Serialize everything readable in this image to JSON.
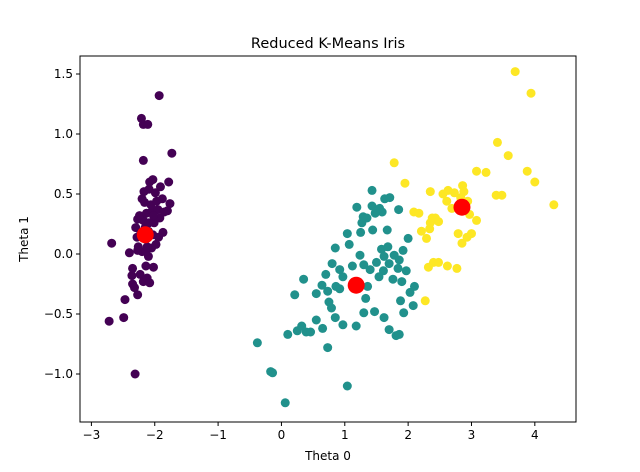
{
  "chart_data": {
    "type": "scatter",
    "title": "Reduced K-Means Iris",
    "xlabel": "Theta 0",
    "ylabel": "Theta 1",
    "xlim": [
      -3.18,
      4.65
    ],
    "ylim": [
      -1.4,
      1.65
    ],
    "xticks": [
      -3,
      -2,
      -1,
      0,
      1,
      2,
      3,
      4
    ],
    "yticks": [
      -1.0,
      -0.5,
      0.0,
      0.5,
      1.0,
      1.5
    ],
    "xtick_labels": [
      "−3",
      "−2",
      "−1",
      "0",
      "1",
      "2",
      "3",
      "4"
    ],
    "ytick_labels": [
      "−1.0",
      "−0.5",
      "0.0",
      "0.5",
      "1.0",
      "1.5"
    ],
    "grid": false,
    "colors": {
      "cluster0": "#440154",
      "cluster1": "#21918c",
      "cluster2": "#fde725",
      "centroid": "#ff0000"
    },
    "series": [
      {
        "cluster": 0,
        "points": [
          [
            -2.68,
            0.09
          ],
          [
            -2.72,
            -0.56
          ],
          [
            -2.49,
            -0.53
          ],
          [
            -2.31,
            -1.0
          ],
          [
            -2.47,
            -0.38
          ],
          [
            -2.35,
            -0.25
          ],
          [
            -2.36,
            -0.18
          ],
          [
            -2.32,
            -0.28
          ],
          [
            -2.27,
            -0.34
          ],
          [
            -2.23,
            -0.17
          ],
          [
            -2.18,
            -0.23
          ],
          [
            -2.14,
            -0.1
          ],
          [
            -2.12,
            -0.2
          ],
          [
            -2.08,
            -0.24
          ],
          [
            -2.02,
            -0.11
          ],
          [
            -2.1,
            -0.02
          ],
          [
            -2.35,
            -0.12
          ],
          [
            -2.4,
            0.01
          ],
          [
            -2.27,
            0.03
          ],
          [
            -2.2,
            0.02
          ],
          [
            -2.14,
            0.02
          ],
          [
            -2.05,
            0.05
          ],
          [
            -1.98,
            0.08
          ],
          [
            -2.28,
            0.14
          ],
          [
            -2.22,
            0.18
          ],
          [
            -2.15,
            0.22
          ],
          [
            -2.1,
            0.19
          ],
          [
            -2.03,
            0.16
          ],
          [
            -1.94,
            0.14
          ],
          [
            -1.87,
            0.18
          ],
          [
            -2.3,
            0.22
          ],
          [
            -2.27,
            0.29
          ],
          [
            -2.18,
            0.28
          ],
          [
            -2.09,
            0.26
          ],
          [
            -2.01,
            0.26
          ],
          [
            -1.92,
            0.3
          ],
          [
            -2.24,
            0.32
          ],
          [
            -2.13,
            0.34
          ],
          [
            -2.04,
            0.36
          ],
          [
            -1.95,
            0.37
          ],
          [
            -1.85,
            0.35
          ],
          [
            -2.16,
            0.43
          ],
          [
            -2.06,
            0.41
          ],
          [
            -1.97,
            0.44
          ],
          [
            -1.76,
            0.42
          ],
          [
            -2.17,
            0.52
          ],
          [
            -2.09,
            0.54
          ],
          [
            -1.99,
            0.51
          ],
          [
            -1.91,
            0.56
          ],
          [
            -2.08,
            0.6
          ],
          [
            -1.78,
            0.6
          ],
          [
            -2.03,
            0.62
          ],
          [
            -1.73,
            0.84
          ],
          [
            -2.18,
            0.78
          ],
          [
            -2.18,
            1.08
          ],
          [
            -2.11,
            1.08
          ],
          [
            -2.21,
            1.13
          ],
          [
            -1.93,
            1.32
          ],
          [
            -2.02,
            0.32
          ],
          [
            -2.2,
            0.46
          ],
          [
            -1.88,
            0.46
          ],
          [
            -1.8,
            0.36
          ],
          [
            -2.26,
            0.06
          ],
          [
            -2.12,
            0.06
          ]
        ]
      },
      {
        "cluster": 1,
        "points": [
          [
            0.06,
            -1.24
          ],
          [
            -0.17,
            -0.98
          ],
          [
            -0.14,
            -0.99
          ],
          [
            -0.38,
            -0.74
          ],
          [
            0.1,
            -0.67
          ],
          [
            0.25,
            -0.64
          ],
          [
            0.32,
            -0.6
          ],
          [
            0.39,
            -0.65
          ],
          [
            0.46,
            -0.65
          ],
          [
            0.55,
            -0.55
          ],
          [
            0.65,
            -0.62
          ],
          [
            0.73,
            -0.78
          ],
          [
            0.79,
            -0.45
          ],
          [
            0.75,
            -0.4
          ],
          [
            0.85,
            -0.53
          ],
          [
            0.97,
            -0.59
          ],
          [
            1.04,
            -1.1
          ],
          [
            1.18,
            -0.6
          ],
          [
            1.3,
            -0.49
          ],
          [
            1.33,
            -0.37
          ],
          [
            1.47,
            -0.48
          ],
          [
            1.62,
            -0.53
          ],
          [
            1.7,
            -0.63
          ],
          [
            1.81,
            -0.68
          ],
          [
            1.86,
            -0.67
          ],
          [
            1.93,
            -0.49
          ],
          [
            2.08,
            -0.43
          ],
          [
            1.88,
            -0.39
          ],
          [
            2.03,
            -0.32
          ],
          [
            2.1,
            -0.27
          ],
          [
            1.9,
            -0.23
          ],
          [
            1.97,
            -0.14
          ],
          [
            1.84,
            -0.12
          ],
          [
            1.86,
            -0.05
          ],
          [
            1.7,
            -0.08
          ],
          [
            1.61,
            -0.14
          ],
          [
            1.5,
            -0.07
          ],
          [
            1.4,
            -0.13
          ],
          [
            1.3,
            -0.09
          ],
          [
            1.24,
            -0.01
          ],
          [
            1.12,
            -0.1
          ],
          [
            0.97,
            -0.19
          ],
          [
            0.86,
            -0.27
          ],
          [
            0.73,
            -0.31
          ],
          [
            0.64,
            -0.26
          ],
          [
            0.55,
            -0.33
          ],
          [
            0.35,
            -0.21
          ],
          [
            0.21,
            -0.34
          ],
          [
            0.7,
            -0.17
          ],
          [
            0.8,
            -0.08
          ],
          [
            0.92,
            -0.13
          ],
          [
            1.07,
            0.08
          ],
          [
            1.25,
            0.18
          ],
          [
            1.44,
            0.2
          ],
          [
            1.58,
            0.04
          ],
          [
            1.68,
            0.06
          ],
          [
            1.78,
            -0.01
          ],
          [
            1.92,
            0.03
          ],
          [
            2.0,
            0.13
          ],
          [
            1.59,
            0.35
          ],
          [
            1.48,
            0.34
          ],
          [
            1.35,
            0.3
          ],
          [
            1.27,
            0.26
          ],
          [
            1.43,
            0.4
          ],
          [
            1.55,
            0.38
          ],
          [
            1.63,
            0.46
          ],
          [
            1.71,
            0.47
          ],
          [
            1.85,
            0.37
          ],
          [
            1.67,
            0.2
          ],
          [
            1.43,
            0.53
          ],
          [
            1.19,
            0.39
          ],
          [
            1.29,
            0.31
          ],
          [
            1.21,
            -0.25
          ],
          [
            1.54,
            -0.19
          ],
          [
            0.85,
            0.05
          ],
          [
            1.04,
            0.17
          ],
          [
            1.76,
            -0.21
          ],
          [
            0.92,
            -0.29
          ],
          [
            1.62,
            -0.02
          ],
          [
            1.36,
            -0.27
          ]
        ]
      },
      {
        "cluster": 2,
        "points": [
          [
            1.78,
            0.76
          ],
          [
            1.95,
            0.59
          ],
          [
            2.09,
            0.35
          ],
          [
            2.17,
            0.34
          ],
          [
            2.21,
            0.19
          ],
          [
            2.29,
            0.13
          ],
          [
            2.34,
            0.21
          ],
          [
            2.35,
            0.26
          ],
          [
            2.38,
            0.3
          ],
          [
            2.43,
            0.3
          ],
          [
            2.48,
            0.27
          ],
          [
            2.32,
            -0.11
          ],
          [
            2.4,
            -0.07
          ],
          [
            2.48,
            -0.07
          ],
          [
            2.62,
            -0.1
          ],
          [
            2.77,
            -0.12
          ],
          [
            2.85,
            0.09
          ],
          [
            2.93,
            0.14
          ],
          [
            3.08,
            0.69
          ],
          [
            3.23,
            0.68
          ],
          [
            3.41,
            0.93
          ],
          [
            3.58,
            0.82
          ],
          [
            3.69,
            1.52
          ],
          [
            3.88,
            0.69
          ],
          [
            3.94,
            1.34
          ],
          [
            4.0,
            0.6
          ],
          [
            4.3,
            0.41
          ],
          [
            3.39,
            0.49
          ],
          [
            3.48,
            0.49
          ],
          [
            3.08,
            0.28
          ],
          [
            3.0,
            0.17
          ],
          [
            2.79,
            0.17
          ],
          [
            2.69,
            0.38
          ],
          [
            2.61,
            0.44
          ],
          [
            2.55,
            0.5
          ],
          [
            2.63,
            0.53
          ],
          [
            2.73,
            0.51
          ],
          [
            2.83,
            0.47
          ],
          [
            2.86,
            0.57
          ],
          [
            2.88,
            0.52
          ],
          [
            2.94,
            0.44
          ],
          [
            2.97,
            0.33
          ],
          [
            2.35,
            0.52
          ],
          [
            2.27,
            -0.39
          ]
        ]
      }
    ],
    "centroids": [
      [
        -2.15,
        0.16
      ],
      [
        1.18,
        -0.26
      ],
      [
        2.85,
        0.39
      ]
    ]
  }
}
